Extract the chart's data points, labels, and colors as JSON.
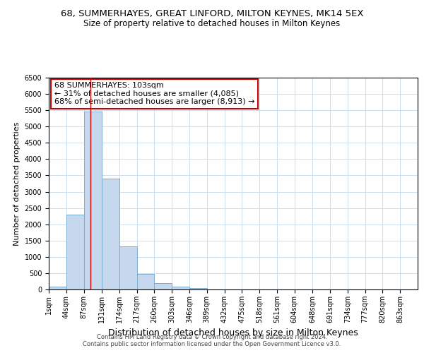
{
  "title_line1": "68, SUMMERHAYES, GREAT LINFORD, MILTON KEYNES, MK14 5EX",
  "title_line2": "Size of property relative to detached houses in Milton Keynes",
  "xlabel": "Distribution of detached houses by size in Milton Keynes",
  "ylabel": "Number of detached properties",
  "footer_line1": "Contains HM Land Registry data © Crown copyright and database right 2024.",
  "footer_line2": "Contains public sector information licensed under the Open Government Licence v3.0.",
  "annotation_title": "68 SUMMERHAYES: 103sqm",
  "annotation_line1": "← 31% of detached houses are smaller (4,085)",
  "annotation_line2": "68% of semi-detached houses are larger (8,913) →",
  "property_size": 103,
  "bar_color": "#c5d8ee",
  "bar_edge_color": "#7aadcf",
  "vline_color": "#cc0000",
  "background_color": "#ffffff",
  "grid_color": "#ccdded",
  "categories": [
    "1sqm",
    "44sqm",
    "87sqm",
    "131sqm",
    "174sqm",
    "217sqm",
    "260sqm",
    "303sqm",
    "346sqm",
    "389sqm",
    "432sqm",
    "475sqm",
    "518sqm",
    "561sqm",
    "604sqm",
    "648sqm",
    "691sqm",
    "734sqm",
    "777sqm",
    "820sqm",
    "863sqm"
  ],
  "bar_heights": [
    80,
    2300,
    5450,
    3400,
    1320,
    475,
    190,
    85,
    50,
    0,
    0,
    0,
    0,
    0,
    0,
    0,
    0,
    0,
    0,
    0,
    0
  ],
  "bin_edges": [
    1,
    44,
    87,
    131,
    174,
    217,
    260,
    303,
    346,
    389,
    432,
    475,
    518,
    561,
    604,
    648,
    691,
    734,
    777,
    820,
    863,
    906
  ],
  "ylim": [
    0,
    6500
  ],
  "yticks": [
    0,
    500,
    1000,
    1500,
    2000,
    2500,
    3000,
    3500,
    4000,
    4500,
    5000,
    5500,
    6000,
    6500
  ],
  "title1_fontsize": 9.5,
  "title2_fontsize": 8.5,
  "ylabel_fontsize": 8,
  "xlabel_fontsize": 9,
  "tick_fontsize": 7,
  "footer_fontsize": 6,
  "annot_fontsize": 8
}
